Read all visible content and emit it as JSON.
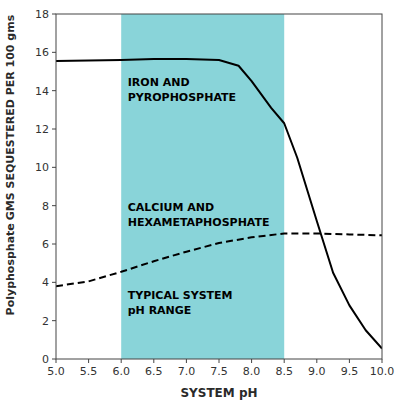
{
  "chart_data": {
    "type": "line",
    "x_label": "SYSTEM pH",
    "y_label": [
      "GMS SEQUESTERED PER 100 gms",
      "Polyphosphate"
    ],
    "xlim": [
      5.0,
      10.0
    ],
    "ylim": [
      0,
      18
    ],
    "xticks": [
      {
        "value": 5.0,
        "label": "5.0"
      },
      5.5,
      {
        "value": 6.0,
        "label": "6.0"
      },
      6.5,
      {
        "value": 7.0,
        "label": "7.0"
      },
      7.5,
      {
        "value": 8.0,
        "label": "8.0"
      },
      8.5,
      {
        "value": 9.0,
        "label": "9.0"
      },
      9.5,
      {
        "value": 10.0,
        "label": "10.0"
      }
    ],
    "yticks": [
      0,
      2,
      4,
      6,
      8,
      10,
      12,
      14,
      16,
      18
    ],
    "grid": false,
    "series": [
      {
        "x": [
          5.0,
          5.5,
          6.0,
          6.5,
          7.0,
          7.5,
          7.8,
          8.0,
          8.3,
          8.5,
          8.7,
          9.0,
          9.25,
          9.5,
          9.75,
          10.0
        ],
        "values": [
          15.55,
          15.58,
          15.6,
          15.65,
          15.65,
          15.6,
          15.3,
          14.5,
          13.1,
          12.3,
          10.5,
          7.2,
          4.5,
          2.8,
          1.5,
          0.55
        ],
        "color": "#000000",
        "line_style": "solid"
      },
      {
        "x": [
          5.0,
          5.5,
          6.0,
          6.5,
          7.0,
          7.5,
          8.0,
          8.5,
          9.0,
          9.5,
          10.0
        ],
        "values": [
          3.8,
          4.05,
          4.55,
          5.1,
          5.6,
          6.05,
          6.35,
          6.55,
          6.55,
          6.5,
          6.45
        ],
        "color": "#000000",
        "line_style": "dashed"
      }
    ],
    "regions": [
      {
        "x": [
          6.0,
          8.5
        ],
        "color": "#3ab8bf"
      }
    ],
    "annotations": [
      {
        "text": "IRON AND\nPYROPHOSPHATE",
        "x": 6.1,
        "y": 14.8
      },
      {
        "text": "CALCIUM AND\nHEXAMETAPHOSPHATE",
        "x": 6.1,
        "y": 8.3
      },
      {
        "text": "TYPICAL SYSTEM\npH RANGE",
        "x": 6.1,
        "y": 3.7
      }
    ]
  }
}
